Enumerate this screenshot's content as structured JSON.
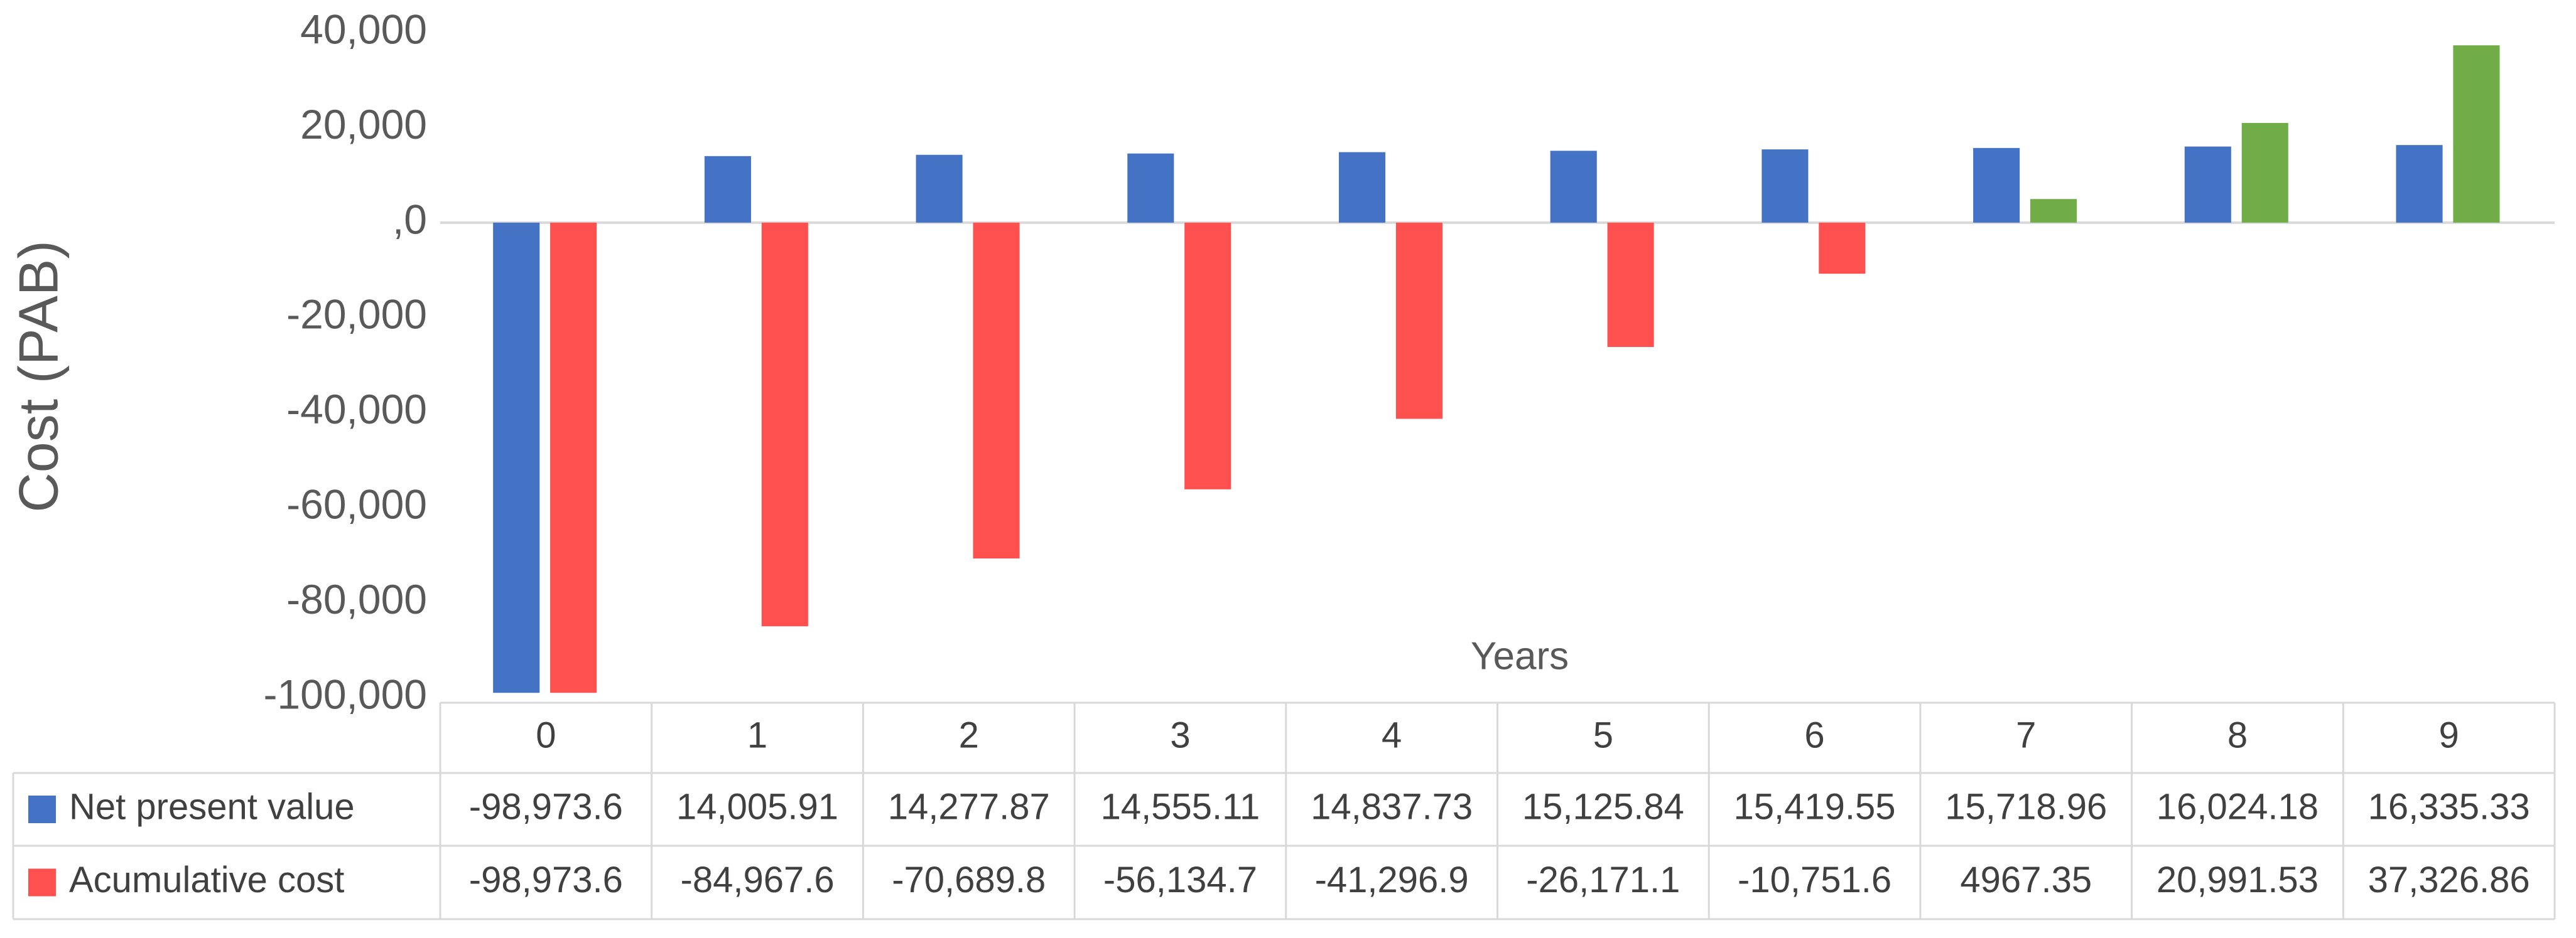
{
  "chart_data": {
    "type": "bar",
    "y_label": "Cost (PAB)",
    "x_label": "Years",
    "categories": [
      "0",
      "1",
      "2",
      "3",
      "4",
      "5",
      "6",
      "7",
      "8",
      "9"
    ],
    "series": [
      {
        "name": "Net present value",
        "color": "#4472c4",
        "values": [
          -98973.6,
          14005.91,
          14277.87,
          14555.11,
          14837.73,
          15125.84,
          15419.55,
          15718.96,
          16024.18,
          16335.33
        ],
        "value_labels": [
          "-98,973.6",
          "14,005.91",
          "14,277.87",
          "14,555.11",
          "14,837.73",
          "15,125.84",
          "15,419.55",
          "15,718.96",
          "16,024.18",
          "16,335.33"
        ]
      },
      {
        "name": "Acumulative cost",
        "color": "#ff5050",
        "colors": [
          "#ff5050",
          "#ff5050",
          "#ff5050",
          "#ff5050",
          "#ff5050",
          "#ff5050",
          "#ff5050",
          "#70ad47",
          "#70ad47",
          "#70ad47"
        ],
        "values": [
          -98973.6,
          -84967.6,
          -70689.8,
          -56134.7,
          -41296.9,
          -26171.1,
          -10751.6,
          4967.35,
          20991.53,
          37326.86
        ],
        "value_labels": [
          "-98,973.6",
          "-84,967.6",
          "-70,689.8",
          "-56,134.7",
          "-41,296.9",
          "-26,171.1",
          "-10,751.6",
          "4967.35",
          "20,991.53",
          "37,326.86"
        ]
      }
    ],
    "ylim": [
      -100000,
      40000
    ],
    "yticks": [
      {
        "value": 40000,
        "label": "40,000"
      },
      {
        "value": 20000,
        "label": "20,000"
      },
      {
        "value": 0,
        "label": ",0"
      },
      {
        "value": -20000,
        "label": "-20,000"
      },
      {
        "value": -40000,
        "label": "-40,000"
      },
      {
        "value": -60000,
        "label": "-60,000"
      },
      {
        "value": -80000,
        "label": "-80,000"
      },
      {
        "value": -100000,
        "label": "-100,000"
      }
    ],
    "grid": false
  }
}
